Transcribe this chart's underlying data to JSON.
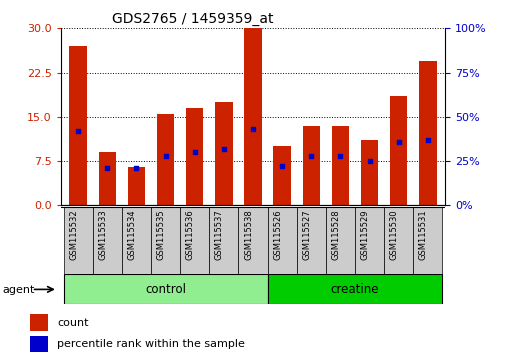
{
  "title": "GDS2765 / 1459359_at",
  "samples": [
    "GSM115532",
    "GSM115533",
    "GSM115534",
    "GSM115535",
    "GSM115536",
    "GSM115537",
    "GSM115538",
    "GSM115526",
    "GSM115527",
    "GSM115528",
    "GSM115529",
    "GSM115530",
    "GSM115531"
  ],
  "count_values": [
    27.0,
    9.0,
    6.5,
    15.5,
    16.5,
    17.5,
    30.0,
    10.0,
    13.5,
    13.5,
    11.0,
    18.5,
    24.5
  ],
  "percentile_values": [
    42,
    21,
    21,
    28,
    30,
    32,
    43,
    22,
    28,
    28,
    25,
    36,
    37
  ],
  "groups": [
    {
      "name": "control",
      "color": "#90EE90",
      "start": 0,
      "end": 7
    },
    {
      "name": "creatine",
      "color": "#00CC00",
      "start": 7,
      "end": 13
    }
  ],
  "ylim_left": [
    0,
    30
  ],
  "ylim_right": [
    0,
    100
  ],
  "yticks_left": [
    0,
    7.5,
    15,
    22.5,
    30
  ],
  "yticks_right": [
    0,
    25,
    50,
    75,
    100
  ],
  "bar_color": "#CC2200",
  "dot_color": "#0000CC",
  "agent_label": "agent",
  "legend_count": "count",
  "legend_pct": "percentile rank within the sample",
  "background_plot": "#FFFFFF",
  "tick_label_color_left": "#CC2200",
  "tick_label_color_right": "#0000CC"
}
